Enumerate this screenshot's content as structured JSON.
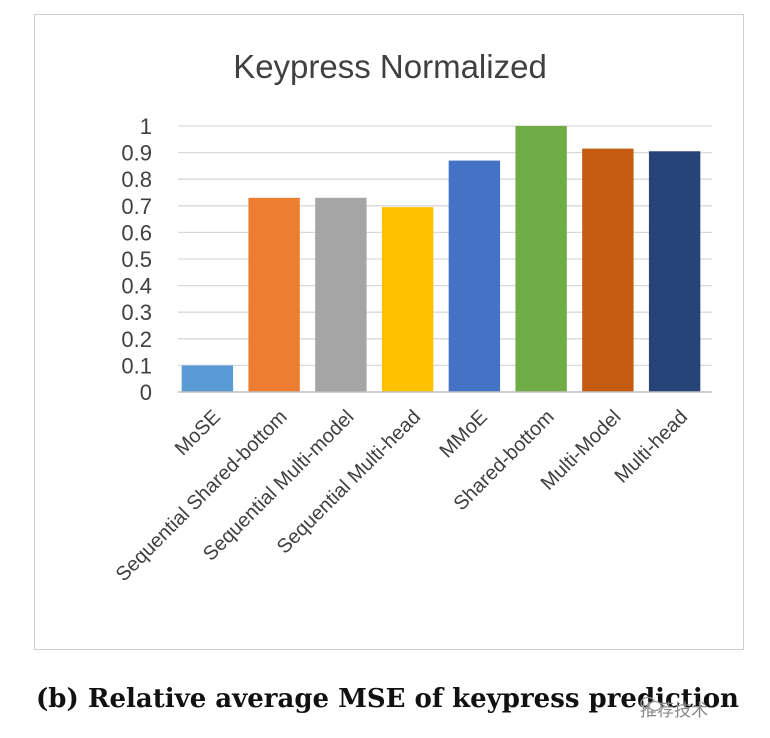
{
  "chart_data": {
    "type": "bar",
    "title": "Keypress Normalized",
    "categories": [
      "MoSE",
      "Sequential Shared-bottom",
      "Sequential Multi-model",
      "Sequential Multi-head",
      "MMoE",
      "Shared-bottom",
      "Multi-Model",
      "Multi-head"
    ],
    "values": [
      0.1,
      0.73,
      0.73,
      0.695,
      0.87,
      1.0,
      0.915,
      0.905
    ],
    "colors": [
      "#5b9bd5",
      "#ed7d31",
      "#a5a5a5",
      "#ffc000",
      "#4472c4",
      "#70ad47",
      "#c55a11",
      "#264478"
    ],
    "ylim": [
      0,
      1
    ],
    "yticks": [
      "0",
      "0.1",
      "0.2",
      "0.3",
      "0.4",
      "0.5",
      "0.6",
      "0.7",
      "0.8",
      "0.9",
      "1"
    ],
    "grid": true,
    "legend": "none"
  },
  "caption": "(b) Relative average MSE of keypress prediction",
  "watermark": "推荐技术"
}
